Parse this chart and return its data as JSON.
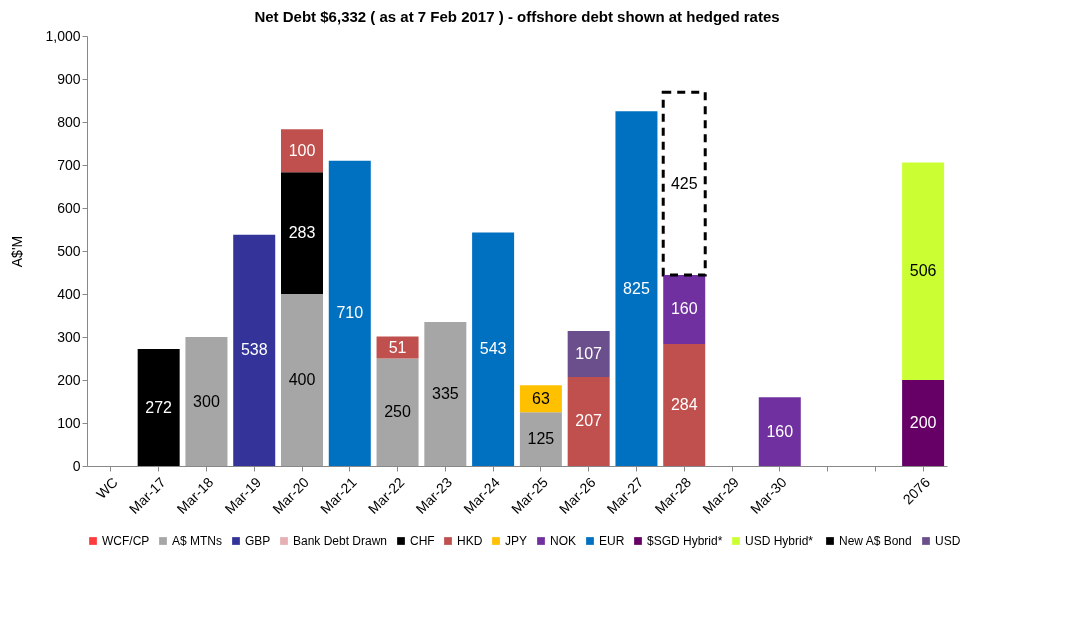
{
  "chart_data": {
    "type": "bar",
    "title": "Net Debt $6,332 ( as at 7 Feb 2017 ) - offshore debt shown at hedged rates",
    "ylabel": "A$'M",
    "categories": [
      "WC",
      "Mar-17",
      "Mar-18",
      "Mar-19",
      "Mar-20",
      "Mar-21",
      "Mar-22",
      "Mar-23",
      "Mar-24",
      "Mar-25",
      "Mar-26",
      "Mar-27",
      "Mar-28",
      "Mar-29",
      "Mar-30",
      null,
      null,
      "2076"
    ],
    "stacked": true,
    "data_labels": true,
    "legend": "bottom",
    "grid": false,
    "ylim": [
      0,
      1000
    ],
    "yticks": [
      0,
      100,
      200,
      300,
      400,
      500,
      600,
      700,
      800,
      900,
      {
        "value": 1000,
        "label": "1,000"
      }
    ],
    "series": [
      {
        "name": "WCF/CP",
        "color": "#ff3b3b",
        "values": [
          null,
          null,
          null,
          null,
          null,
          null,
          null,
          null,
          null,
          null,
          null,
          null,
          null,
          null,
          null,
          null,
          null,
          null
        ]
      },
      {
        "name": "A$ MTNs",
        "color": "#a6a6a6",
        "values": [
          null,
          null,
          300,
          null,
          400,
          null,
          250,
          335,
          null,
          125,
          null,
          null,
          null,
          null,
          null,
          null,
          null,
          null
        ]
      },
      {
        "name": "GBP",
        "color": "#333399",
        "values": [
          null,
          null,
          null,
          538,
          null,
          null,
          null,
          null,
          null,
          null,
          null,
          null,
          null,
          null,
          null,
          null,
          null,
          null
        ]
      },
      {
        "name": "Bank Debt Drawn",
        "color": "#e6b0b4",
        "values": [
          null,
          null,
          null,
          null,
          null,
          null,
          null,
          null,
          null,
          null,
          null,
          null,
          null,
          null,
          null,
          null,
          null,
          null
        ]
      },
      {
        "name": "CHF",
        "color": "#000000",
        "values": [
          null,
          272,
          null,
          null,
          283,
          null,
          null,
          null,
          null,
          null,
          null,
          null,
          null,
          null,
          null,
          null,
          null,
          null
        ]
      },
      {
        "name": "HKD",
        "color": "#c0504d",
        "values": [
          null,
          null,
          null,
          null,
          100,
          null,
          51,
          null,
          null,
          null,
          207,
          null,
          284,
          null,
          null,
          null,
          null,
          null
        ]
      },
      {
        "name": "JPY",
        "color": "#ffc000",
        "values": [
          null,
          null,
          null,
          null,
          null,
          null,
          null,
          null,
          null,
          63,
          null,
          null,
          null,
          null,
          null,
          null,
          null,
          null
        ]
      },
      {
        "name": "NOK",
        "color": "#7030a0",
        "values": [
          null,
          null,
          null,
          null,
          null,
          null,
          null,
          null,
          null,
          null,
          null,
          null,
          160,
          null,
          160,
          null,
          null,
          null
        ]
      },
      {
        "name": "EUR",
        "color": "#0070c0",
        "values": [
          null,
          null,
          null,
          null,
          null,
          710,
          null,
          null,
          543,
          null,
          null,
          825,
          null,
          null,
          null,
          null,
          null,
          null
        ]
      },
      {
        "name": "$SGD Hybrid*",
        "color": "#660066",
        "values": [
          null,
          null,
          null,
          null,
          null,
          null,
          null,
          null,
          null,
          null,
          null,
          null,
          null,
          null,
          null,
          null,
          null,
          200
        ]
      },
      {
        "name": "USD  Hybrid*",
        "color": "#ccff33",
        "values": [
          null,
          null,
          null,
          null,
          null,
          null,
          null,
          null,
          null,
          null,
          null,
          null,
          null,
          null,
          null,
          null,
          null,
          506
        ]
      },
      {
        "name": "New A$ Bond",
        "color": "#000000",
        "line_style": "dashed",
        "values": [
          null,
          null,
          null,
          null,
          null,
          null,
          null,
          null,
          null,
          null,
          null,
          null,
          425,
          null,
          null,
          null,
          null,
          null
        ]
      },
      {
        "name": "USD",
        "color": "#6b4f8c",
        "values": [
          null,
          null,
          null,
          null,
          null,
          null,
          null,
          null,
          null,
          null,
          107,
          null,
          null,
          null,
          null,
          null,
          null,
          null
        ]
      }
    ]
  }
}
